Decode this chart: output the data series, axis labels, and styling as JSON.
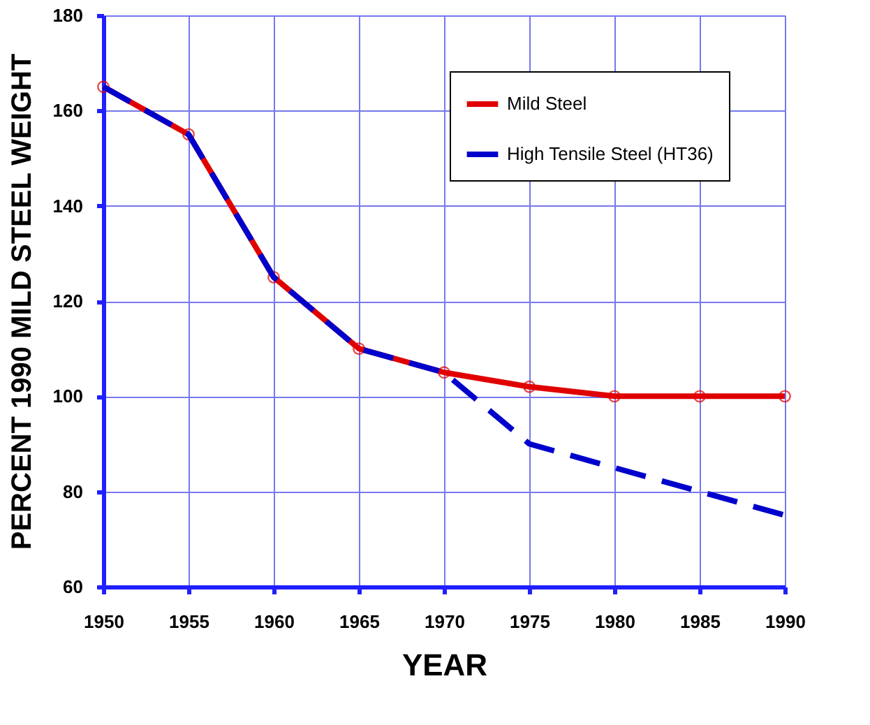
{
  "chart_data": {
    "type": "line",
    "xlabel": "YEAR",
    "ylabel": "PERCENT 1990 MILD STEEL WEIGHT",
    "x": [
      1950,
      1955,
      1960,
      1965,
      1970,
      1975,
      1980,
      1985,
      1990
    ],
    "series": [
      {
        "name": "Mild Steel",
        "color": "#e00000",
        "marker": "circle",
        "line_style": "solid",
        "values": [
          165,
          155,
          125,
          110,
          105,
          102,
          100,
          100,
          100
        ]
      },
      {
        "name": "High Tensile Steel (HT36)",
        "color": "#0000cc",
        "marker": "none",
        "line_style": "dashed",
        "values": [
          165,
          155,
          125,
          110,
          105,
          90,
          85,
          80,
          75
        ]
      }
    ],
    "xlim": [
      1950,
      1990
    ],
    "xticks": [
      1950,
      1955,
      1960,
      1965,
      1970,
      1975,
      1980,
      1985,
      1990
    ],
    "ylim": [
      60,
      180
    ],
    "yticks": [
      60,
      80,
      100,
      120,
      140,
      160,
      180
    ],
    "grid": true,
    "legend": "top right"
  }
}
